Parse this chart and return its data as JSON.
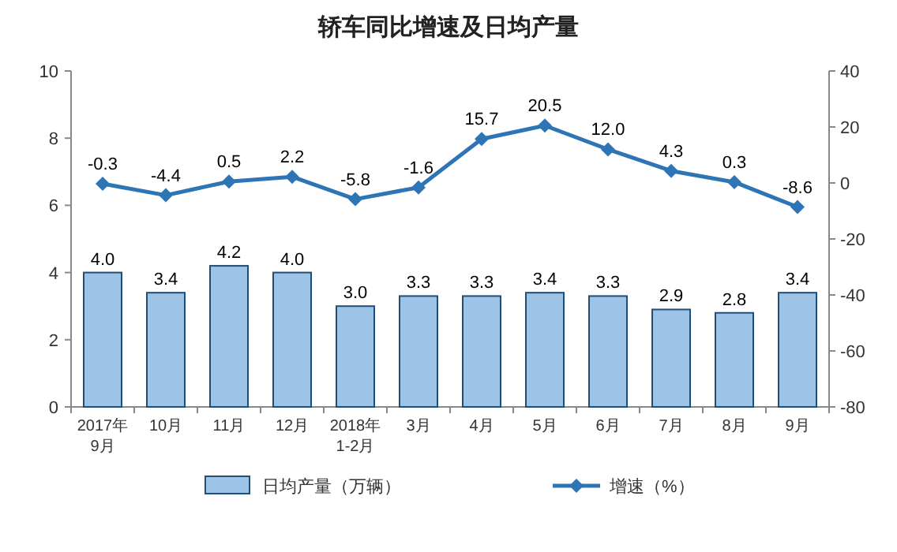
{
  "chart_data": {
    "type": "bar",
    "title": "轿车同比增速及日均产量",
    "categories": [
      "2017年\n9月",
      "10月",
      "11月",
      "12月",
      "2018年\n1-2月",
      "3月",
      "4月",
      "5月",
      "6月",
      "7月",
      "8月",
      "9月"
    ],
    "series": [
      {
        "name": "日均产量（万辆）",
        "color": "#9dc3e6",
        "values": [
          4.0,
          3.4,
          4.2,
          4.0,
          3.0,
          3.3,
          3.3,
          3.4,
          3.3,
          2.9,
          2.8,
          3.4
        ],
        "value_labels": [
          "4.0",
          "3.4",
          "4.2",
          "4.0",
          "3.0",
          "3.3",
          "3.3",
          "3.4",
          "3.3",
          "2.9",
          "2.8",
          "3.4"
        ]
      },
      {
        "name": "增速（%）",
        "type": "line",
        "axis": "y2",
        "color": "#2e75b6",
        "marker": "diamond",
        "values": [
          -0.3,
          -4.4,
          0.5,
          2.2,
          -5.8,
          -1.6,
          15.7,
          20.5,
          12.0,
          4.3,
          0.3,
          -8.6
        ],
        "value_labels": [
          "-0.3",
          "-4.4",
          "0.5",
          "2.2",
          "-5.8",
          "-1.6",
          "15.7",
          "20.5",
          "12.0",
          "4.3",
          "0.3",
          "-8.6"
        ]
      }
    ],
    "ylim": [
      0,
      10
    ],
    "yticks": [
      0,
      2,
      4,
      6,
      8,
      10
    ],
    "y2lim": [
      -80,
      40
    ],
    "y2ticks": [
      -80,
      -60,
      -40,
      -20,
      0,
      20,
      40
    ],
    "grid": false,
    "legend": "bottom"
  }
}
